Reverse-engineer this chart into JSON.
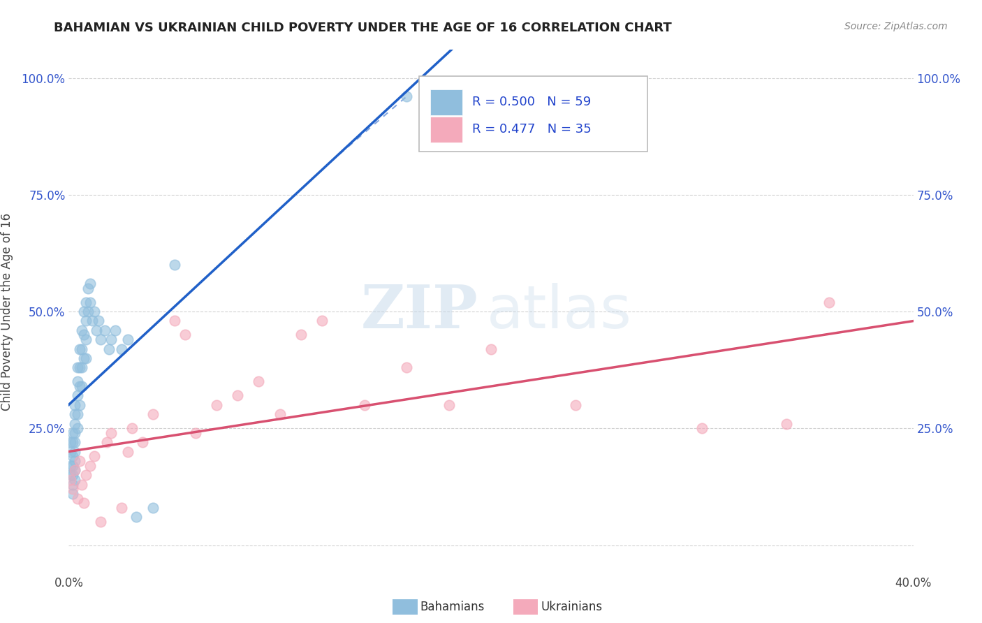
{
  "title": "BAHAMIAN VS UKRAINIAN CHILD POVERTY UNDER THE AGE OF 16 CORRELATION CHART",
  "source": "Source: ZipAtlas.com",
  "ylabel": "Child Poverty Under the Age of 16",
  "xlim": [
    0.0,
    0.4
  ],
  "ylim": [
    -0.06,
    1.06
  ],
  "bahamian_color": "#90bedd",
  "ukrainian_color": "#f4aabb",
  "blue_line_color": "#2060c8",
  "pink_line_color": "#d85070",
  "r_blue": 0.5,
  "n_blue": 59,
  "r_pink": 0.477,
  "n_pink": 35,
  "legend_blue_r": "R = 0.500",
  "legend_blue_n": "N = 59",
  "legend_pink_r": "R = 0.477",
  "legend_pink_n": "N = 35",
  "bahamian_x": [
    0.001,
    0.001,
    0.001,
    0.001,
    0.002,
    0.002,
    0.002,
    0.002,
    0.002,
    0.002,
    0.002,
    0.003,
    0.003,
    0.003,
    0.003,
    0.003,
    0.003,
    0.003,
    0.003,
    0.003,
    0.004,
    0.004,
    0.004,
    0.004,
    0.004,
    0.005,
    0.005,
    0.005,
    0.005,
    0.006,
    0.006,
    0.006,
    0.006,
    0.007,
    0.007,
    0.007,
    0.008,
    0.008,
    0.008,
    0.008,
    0.009,
    0.009,
    0.01,
    0.01,
    0.011,
    0.012,
    0.013,
    0.014,
    0.015,
    0.017,
    0.019,
    0.02,
    0.022,
    0.025,
    0.028,
    0.032,
    0.04,
    0.05,
    0.16
  ],
  "bahamian_y": [
    0.22,
    0.2,
    0.17,
    0.15,
    0.24,
    0.22,
    0.19,
    0.17,
    0.15,
    0.13,
    0.11,
    0.3,
    0.28,
    0.26,
    0.24,
    0.22,
    0.2,
    0.18,
    0.16,
    0.14,
    0.38,
    0.35,
    0.32,
    0.28,
    0.25,
    0.42,
    0.38,
    0.34,
    0.3,
    0.46,
    0.42,
    0.38,
    0.34,
    0.5,
    0.45,
    0.4,
    0.52,
    0.48,
    0.44,
    0.4,
    0.55,
    0.5,
    0.56,
    0.52,
    0.48,
    0.5,
    0.46,
    0.48,
    0.44,
    0.46,
    0.42,
    0.44,
    0.46,
    0.42,
    0.44,
    0.06,
    0.08,
    0.6,
    0.96
  ],
  "ukrainian_x": [
    0.001,
    0.002,
    0.003,
    0.004,
    0.005,
    0.006,
    0.007,
    0.008,
    0.01,
    0.012,
    0.015,
    0.018,
    0.02,
    0.025,
    0.028,
    0.03,
    0.035,
    0.04,
    0.05,
    0.055,
    0.06,
    0.07,
    0.08,
    0.09,
    0.1,
    0.11,
    0.12,
    0.14,
    0.16,
    0.18,
    0.2,
    0.24,
    0.3,
    0.34,
    0.36
  ],
  "ukrainian_y": [
    0.14,
    0.12,
    0.16,
    0.1,
    0.18,
    0.13,
    0.09,
    0.15,
    0.17,
    0.19,
    0.05,
    0.22,
    0.24,
    0.08,
    0.2,
    0.25,
    0.22,
    0.28,
    0.48,
    0.45,
    0.24,
    0.3,
    0.32,
    0.35,
    0.28,
    0.45,
    0.48,
    0.3,
    0.38,
    0.3,
    0.42,
    0.3,
    0.25,
    0.26,
    0.52
  ]
}
